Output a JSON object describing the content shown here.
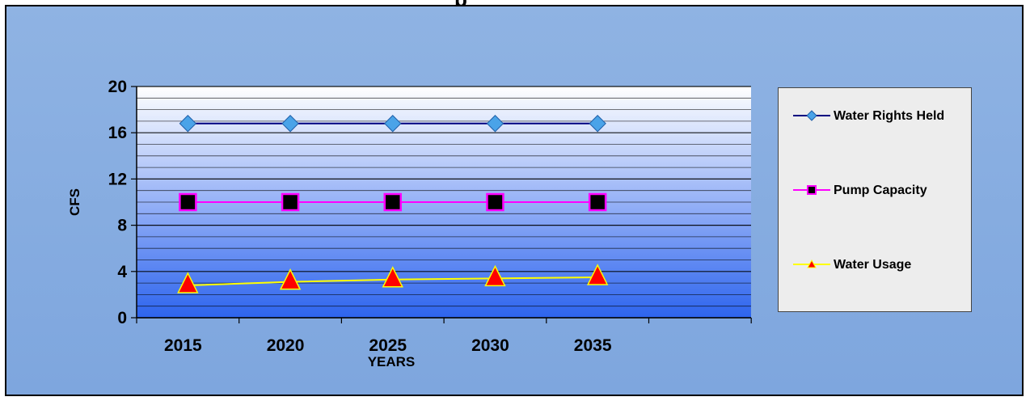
{
  "chart_data": {
    "type": "line",
    "title": "",
    "xlabel": "YEARS",
    "ylabel": "CFS",
    "categories": [
      "2015",
      "2020",
      "2025",
      "2030",
      "2035"
    ],
    "ylim": [
      0,
      20
    ],
    "yticks": [
      0,
      4,
      8,
      12,
      16,
      20
    ],
    "grid": true,
    "legend_position": "right",
    "series": [
      {
        "name": "Water Rights Held",
        "values": [
          16.8,
          16.8,
          16.8,
          16.8,
          16.8
        ],
        "line_color": "#000080",
        "marker": "diamond",
        "marker_color": "#4aa3e8"
      },
      {
        "name": "Pump Capacity",
        "values": [
          10,
          10,
          10,
          10,
          10
        ],
        "line_color": "#ff00ff",
        "marker": "square",
        "marker_color": "#000000"
      },
      {
        "name": "Water Usage",
        "values": [
          2.8,
          3.1,
          3.3,
          3.4,
          3.5
        ],
        "line_color": "#ffff00",
        "marker": "triangle",
        "marker_color": "#ff0000"
      }
    ]
  }
}
